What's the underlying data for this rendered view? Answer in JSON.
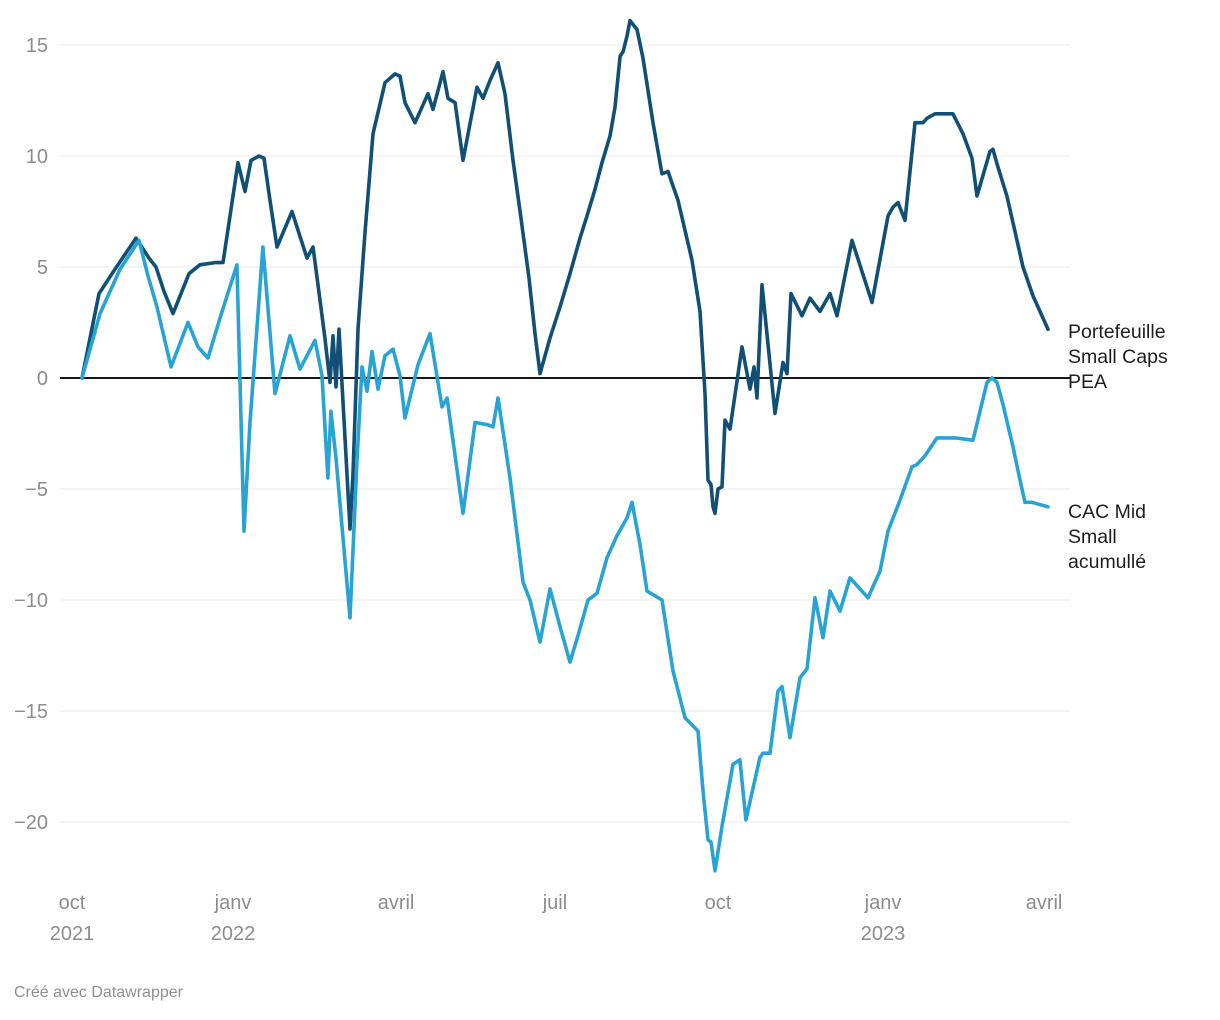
{
  "footer": {
    "credit": "Créé avec Datawrapper"
  },
  "colors": {
    "portefeuille_line": "#115074",
    "cac_line": "#29a2d4",
    "grid_line": "#e9e9e9",
    "zero_line": "#161616",
    "tick_text": "#8c8c8c",
    "label_text": "#1d1d1d"
  },
  "chart_data": {
    "type": "line",
    "title": "",
    "xlabel": "",
    "ylabel": "",
    "grid": "horizontal-only",
    "legend_position": "right-edge-direct-labels",
    "x_range_labels": [
      "oct 2021",
      "avril 2023"
    ],
    "ylim": [
      -22.5,
      16.5
    ],
    "y_ticks": [
      15,
      10,
      5,
      0,
      -5,
      -10,
      -15,
      -20
    ],
    "y_tick_labels": [
      "15",
      "10",
      "5",
      "0",
      "−5",
      "−10",
      "−15",
      "−20"
    ],
    "x_ticks": [
      {
        "label": "oct",
        "sublabel": "2021",
        "pos": -0.0104
      },
      {
        "label": "janv",
        "sublabel": "2022",
        "pos": 0.1563
      },
      {
        "label": "avril",
        "sublabel": "",
        "pos": 0.3251
      },
      {
        "label": "juil",
        "sublabel": "",
        "pos": 0.4896
      },
      {
        "label": "oct",
        "sublabel": "",
        "pos": 0.6584
      },
      {
        "label": "janv",
        "sublabel": "2023",
        "pos": 0.8292
      },
      {
        "label": "avril",
        "sublabel": "",
        "pos": 0.9959
      }
    ],
    "series": [
      {
        "name": "Portefeuille Small Caps PEA",
        "color": "#115074",
        "points": [
          [
            0.0,
            0
          ],
          [
            0.0176,
            3.8
          ],
          [
            0.0311,
            4.7
          ],
          [
            0.0435,
            5.5
          ],
          [
            0.0559,
            6.3
          ],
          [
            0.0694,
            5.4
          ],
          [
            0.0766,
            5.0
          ],
          [
            0.0849,
            3.9
          ],
          [
            0.0942,
            2.9
          ],
          [
            0.1108,
            4.7
          ],
          [
            0.1221,
            5.1
          ],
          [
            0.1377,
            5.2
          ],
          [
            0.146,
            5.2
          ],
          [
            0.1615,
            9.7
          ],
          [
            0.1687,
            8.4
          ],
          [
            0.1749,
            9.8
          ],
          [
            0.1832,
            10.0
          ],
          [
            0.1884,
            9.9
          ],
          [
            0.1946,
            8.0
          ],
          [
            0.2019,
            5.9
          ],
          [
            0.2174,
            7.5
          ],
          [
            0.2277,
            6.1
          ],
          [
            0.2329,
            5.4
          ],
          [
            0.2391,
            5.9
          ],
          [
            0.2443,
            4.2
          ],
          [
            0.2515,
            1.8
          ],
          [
            0.2567,
            -0.2
          ],
          [
            0.2598,
            1.9
          ],
          [
            0.2629,
            -0.4
          ],
          [
            0.266,
            2.2
          ],
          [
            0.2774,
            -6.8
          ],
          [
            0.2805,
            -4.3
          ],
          [
            0.2857,
            2.2
          ],
          [
            0.2929,
            6.5
          ],
          [
            0.3012,
            11.0
          ],
          [
            0.3137,
            13.3
          ],
          [
            0.324,
            13.7
          ],
          [
            0.3292,
            13.6
          ],
          [
            0.3344,
            12.4
          ],
          [
            0.3447,
            11.5
          ],
          [
            0.3582,
            12.8
          ],
          [
            0.3634,
            12.1
          ],
          [
            0.3737,
            13.8
          ],
          [
            0.3789,
            12.6
          ],
          [
            0.3862,
            12.4
          ],
          [
            0.3944,
            9.8
          ],
          [
            0.4089,
            13.1
          ],
          [
            0.4151,
            12.6
          ],
          [
            0.4224,
            13.4
          ],
          [
            0.4306,
            14.2
          ],
          [
            0.4379,
            12.8
          ],
          [
            0.4462,
            9.8
          ],
          [
            0.4544,
            7.2
          ],
          [
            0.4627,
            4.5
          ],
          [
            0.4689,
            2.0
          ],
          [
            0.4741,
            0.2
          ],
          [
            0.4845,
            1.8
          ],
          [
            0.4948,
            3.2
          ],
          [
            0.5052,
            4.7
          ],
          [
            0.5155,
            6.3
          ],
          [
            0.5228,
            7.3
          ],
          [
            0.5311,
            8.5
          ],
          [
            0.5383,
            9.7
          ],
          [
            0.5466,
            10.9
          ],
          [
            0.5518,
            12.2
          ],
          [
            0.557,
            14.5
          ],
          [
            0.5601,
            14.7
          ],
          [
            0.5642,
            15.4
          ],
          [
            0.5673,
            16.1
          ],
          [
            0.5745,
            15.7
          ],
          [
            0.5807,
            14.4
          ],
          [
            0.5911,
            11.5
          ],
          [
            0.6004,
            9.2
          ],
          [
            0.6066,
            9.3
          ],
          [
            0.617,
            8.0
          ],
          [
            0.6315,
            5.3
          ],
          [
            0.6398,
            3.0
          ],
          [
            0.6449,
            -0.7
          ],
          [
            0.648,
            -4.6
          ],
          [
            0.6511,
            -4.8
          ],
          [
            0.6532,
            -5.8
          ],
          [
            0.6553,
            -6.1
          ],
          [
            0.6584,
            -5.0
          ],
          [
            0.6625,
            -4.9
          ],
          [
            0.6656,
            -1.9
          ],
          [
            0.6708,
            -2.3
          ],
          [
            0.6832,
            1.4
          ],
          [
            0.6915,
            -0.5
          ],
          [
            0.6957,
            0.5
          ],
          [
            0.6988,
            -0.9
          ],
          [
            0.7039,
            4.2
          ],
          [
            0.7174,
            -1.6
          ],
          [
            0.7257,
            0.7
          ],
          [
            0.7298,
            0.2
          ],
          [
            0.734,
            3.8
          ],
          [
            0.7453,
            2.8
          ],
          [
            0.7536,
            3.6
          ],
          [
            0.764,
            3.0
          ],
          [
            0.7743,
            3.8
          ],
          [
            0.7816,
            2.8
          ],
          [
            0.7971,
            6.2
          ],
          [
            0.8075,
            4.8
          ],
          [
            0.8178,
            3.4
          ],
          [
            0.8344,
            7.3
          ],
          [
            0.8396,
            7.7
          ],
          [
            0.8447,
            7.9
          ],
          [
            0.852,
            7.1
          ],
          [
            0.8623,
            11.5
          ],
          [
            0.8706,
            11.5
          ],
          [
            0.8747,
            11.7
          ],
          [
            0.883,
            11.9
          ],
          [
            0.8933,
            11.9
          ],
          [
            0.9016,
            11.9
          ],
          [
            0.912,
            11.0
          ],
          [
            0.9213,
            9.9
          ],
          [
            0.9265,
            8.2
          ],
          [
            0.9399,
            10.2
          ],
          [
            0.943,
            10.3
          ],
          [
            0.9482,
            9.5
          ],
          [
            0.9575,
            8.2
          ],
          [
            0.9658,
            6.6
          ],
          [
            0.9741,
            5.0
          ],
          [
            0.9845,
            3.7
          ],
          [
            1.0,
            2.2
          ]
        ]
      },
      {
        "name": "CAC Mid Small acumullé",
        "color": "#29a2d4",
        "points": [
          [
            0.0,
            0
          ],
          [
            0.0186,
            2.9
          ],
          [
            0.0393,
            4.9
          ],
          [
            0.059,
            6.2
          ],
          [
            0.0683,
            4.6
          ],
          [
            0.0776,
            3.2
          ],
          [
            0.0921,
            0.5
          ],
          [
            0.1097,
            2.5
          ],
          [
            0.1201,
            1.4
          ],
          [
            0.1304,
            0.9
          ],
          [
            0.1429,
            2.7
          ],
          [
            0.1604,
            5.1
          ],
          [
            0.1677,
            -6.9
          ],
          [
            0.1739,
            -2.0
          ],
          [
            0.1873,
            5.9
          ],
          [
            0.1998,
            -0.7
          ],
          [
            0.2153,
            1.9
          ],
          [
            0.2257,
            0.4
          ],
          [
            0.2412,
            1.7
          ],
          [
            0.2484,
            0.1
          ],
          [
            0.2546,
            -4.5
          ],
          [
            0.2577,
            -1.5
          ],
          [
            0.2629,
            -3.6
          ],
          [
            0.2774,
            -10.8
          ],
          [
            0.2847,
            -3.7
          ],
          [
            0.2899,
            0.5
          ],
          [
            0.295,
            -0.6
          ],
          [
            0.3002,
            1.2
          ],
          [
            0.3064,
            -0.5
          ],
          [
            0.3137,
            1.0
          ],
          [
            0.3219,
            1.3
          ],
          [
            0.3292,
            0.1
          ],
          [
            0.3344,
            -1.8
          ],
          [
            0.3478,
            0.6
          ],
          [
            0.3602,
            2.0
          ],
          [
            0.3727,
            -1.3
          ],
          [
            0.3779,
            -0.9
          ],
          [
            0.3862,
            -3.5
          ],
          [
            0.3944,
            -6.1
          ],
          [
            0.4068,
            -2.0
          ],
          [
            0.4193,
            -2.1
          ],
          [
            0.4255,
            -2.2
          ],
          [
            0.4306,
            -0.9
          ],
          [
            0.4431,
            -4.5
          ],
          [
            0.4565,
            -9.2
          ],
          [
            0.4638,
            -10.0
          ],
          [
            0.4741,
            -11.9
          ],
          [
            0.4845,
            -9.5
          ],
          [
            0.4948,
            -11.2
          ],
          [
            0.5052,
            -12.8
          ],
          [
            0.5135,
            -11.6
          ],
          [
            0.5238,
            -10.0
          ],
          [
            0.5331,
            -9.7
          ],
          [
            0.5435,
            -8.1
          ],
          [
            0.5538,
            -7.1
          ],
          [
            0.5642,
            -6.3
          ],
          [
            0.5694,
            -5.6
          ],
          [
            0.5776,
            -7.5
          ],
          [
            0.5849,
            -9.6
          ],
          [
            0.6004,
            -10.0
          ],
          [
            0.6118,
            -13.2
          ],
          [
            0.6242,
            -15.3
          ],
          [
            0.6377,
            -15.9
          ],
          [
            0.6429,
            -18.6
          ],
          [
            0.648,
            -20.8
          ],
          [
            0.6511,
            -20.9
          ],
          [
            0.6553,
            -22.2
          ],
          [
            0.6625,
            -20.2
          ],
          [
            0.6739,
            -17.4
          ],
          [
            0.6811,
            -17.2
          ],
          [
            0.6873,
            -19.9
          ],
          [
            0.7018,
            -17.1
          ],
          [
            0.705,
            -16.9
          ],
          [
            0.7122,
            -16.9
          ],
          [
            0.7205,
            -14.1
          ],
          [
            0.7246,
            -13.9
          ],
          [
            0.7329,
            -16.2
          ],
          [
            0.7433,
            -13.5
          ],
          [
            0.7505,
            -13.1
          ],
          [
            0.7588,
            -9.9
          ],
          [
            0.7671,
            -11.7
          ],
          [
            0.7743,
            -9.6
          ],
          [
            0.7847,
            -10.5
          ],
          [
            0.795,
            -9.0
          ],
          [
            0.8054,
            -9.5
          ],
          [
            0.8137,
            -9.9
          ],
          [
            0.8261,
            -8.7
          ],
          [
            0.8344,
            -6.9
          ],
          [
            0.8468,
            -5.5
          ],
          [
            0.8592,
            -4.0
          ],
          [
            0.8644,
            -3.9
          ],
          [
            0.8727,
            -3.5
          ],
          [
            0.8851,
            -2.7
          ],
          [
            0.9037,
            -2.7
          ],
          [
            0.9224,
            -2.8
          ],
          [
            0.9369,
            -0.2
          ],
          [
            0.942,
            0.0
          ],
          [
            0.9472,
            -0.2
          ],
          [
            0.9534,
            -1.2
          ],
          [
            0.9638,
            -3.1
          ],
          [
            0.971,
            -4.6
          ],
          [
            0.9762,
            -5.6
          ],
          [
            0.9834,
            -5.6
          ],
          [
            1.0,
            -5.8
          ]
        ]
      }
    ]
  }
}
